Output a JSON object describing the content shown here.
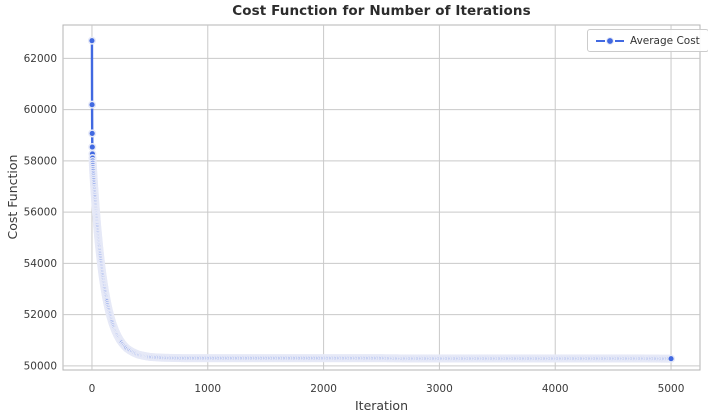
{
  "chart_data": {
    "type": "line",
    "title": "Cost Function for Number of Iterations",
    "xlabel": "Iteration",
    "ylabel": "Cost Function",
    "grid": true,
    "legend": {
      "position": "upper right",
      "entries": [
        "Average Cost"
      ]
    },
    "x_ticks": [
      0,
      1000,
      2000,
      3000,
      4000,
      5000
    ],
    "y_ticks": [
      50000,
      52000,
      54000,
      56000,
      58000,
      60000,
      62000
    ],
    "xlim": [
      -250,
      5250
    ],
    "ylim": [
      49840,
      63300
    ],
    "series": [
      {
        "name": "Average Cost",
        "color": "#4169e1",
        "marker": "o",
        "x": [
          0,
          1,
          2,
          3,
          4,
          5,
          6,
          8,
          10,
          12,
          15,
          20,
          25,
          30,
          35,
          40,
          45,
          50,
          60,
          70,
          80,
          90,
          100,
          110,
          120,
          130,
          140,
          150,
          160,
          175,
          190,
          200,
          220,
          240,
          260,
          280,
          300,
          325,
          350,
          375,
          400,
          450,
          500,
          600,
          700,
          800,
          900,
          1000,
          1200,
          1400,
          1600,
          1800,
          2000,
          2250,
          2500,
          2750,
          3000,
          3250,
          3500,
          3750,
          4000,
          4250,
          4500,
          4750,
          5000
        ],
        "y": [
          62690,
          60190,
          59070,
          58540,
          58270,
          58110,
          57990,
          57820,
          57660,
          57510,
          57300,
          56950,
          56630,
          56310,
          56020,
          55740,
          55460,
          55210,
          54740,
          54320,
          53930,
          53580,
          53270,
          52980,
          52730,
          52490,
          52280,
          52090,
          51920,
          51690,
          51500,
          51380,
          51180,
          51020,
          50890,
          50780,
          50690,
          50610,
          50540,
          50490,
          50440,
          50390,
          50350,
          50320,
          50310,
          50300,
          50300,
          50300,
          50300,
          50300,
          50300,
          50300,
          50300,
          50300,
          50300,
          50290,
          50290,
          50290,
          50290,
          50290,
          50290,
          50290,
          50290,
          50290,
          50280
        ]
      }
    ]
  },
  "style": {
    "accent": "#4169e1",
    "marker_edge": "#e6e9f7",
    "grid_color": "#c9c9c9",
    "spine_color": "#b4b4b4",
    "tick_text_color": "#3b3b3b",
    "title_color": "#2c2c2c",
    "legend_border": "#cccccc"
  }
}
